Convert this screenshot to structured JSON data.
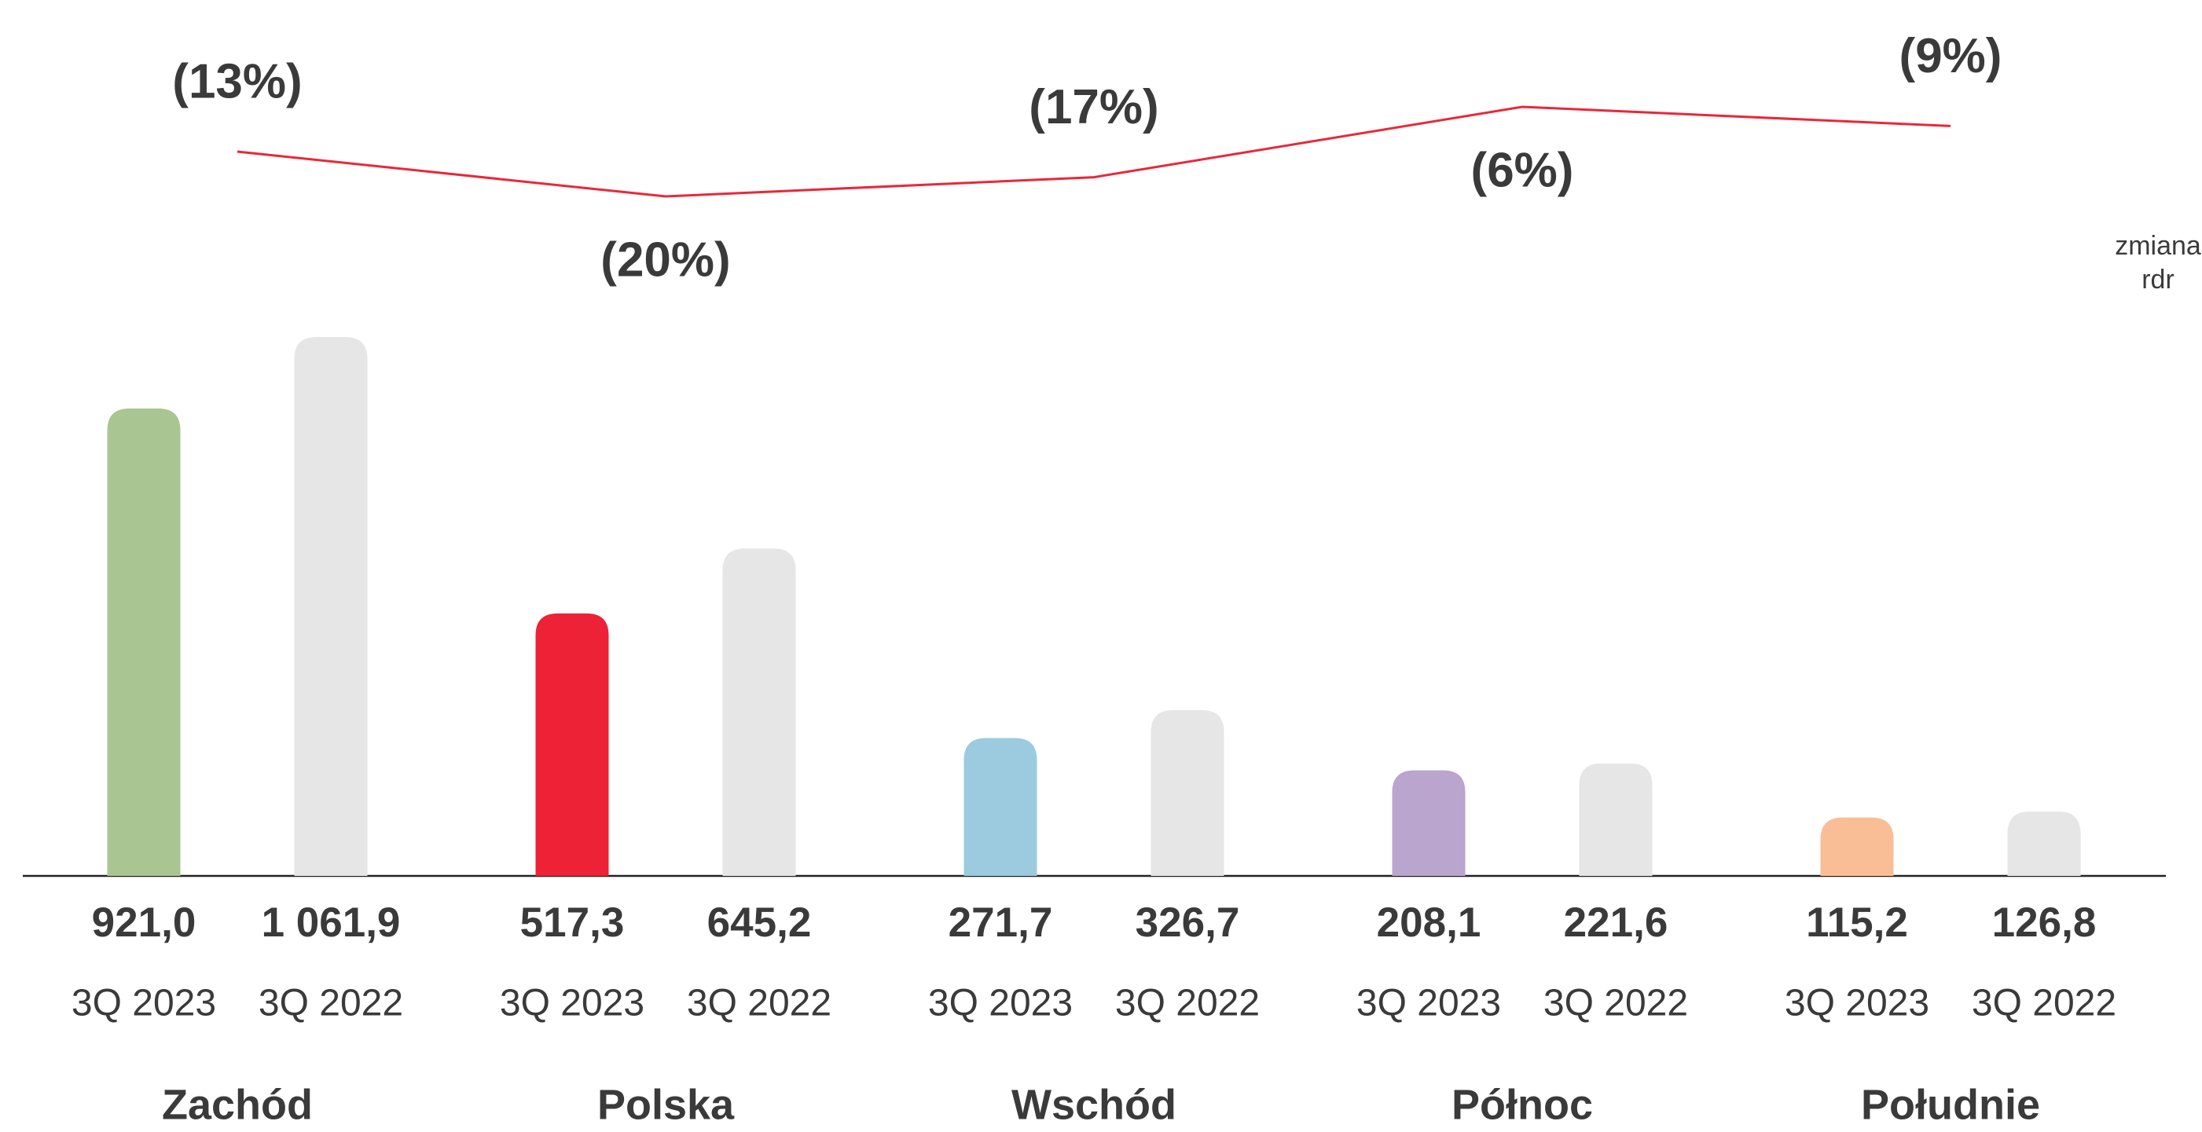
{
  "chart_data": {
    "type": "bar",
    "categories": [
      "Zachód",
      "Polska",
      "Wschód",
      "Północ",
      "Południe"
    ],
    "series": [
      {
        "name": "3Q 2023",
        "colors": [
          "#a9c592",
          "#ed2236",
          "#9ccbdf",
          "#b9a5ce",
          "#f9be96"
        ],
        "values": [
          921.0,
          517.3,
          271.7,
          208.1,
          115.2
        ],
        "value_labels": [
          "921,0",
          "517,3",
          "271,7",
          "208,1",
          "115,2"
        ]
      },
      {
        "name": "3Q 2022",
        "color": "#e6e6e6",
        "values": [
          1061.9,
          645.2,
          326.7,
          221.6,
          126.8
        ],
        "value_labels": [
          "1 061,9",
          "645,2",
          "326,7",
          "221,6",
          "126,8"
        ]
      }
    ],
    "line": {
      "type": "line",
      "name": "zmiana rdr",
      "color": "#e8283a",
      "values": [
        -13,
        -20,
        -17,
        -6,
        -9
      ],
      "value_labels": [
        "(13%)",
        "(20%)",
        "(17%)",
        "(6%)",
        "(9%)"
      ]
    }
  }
}
